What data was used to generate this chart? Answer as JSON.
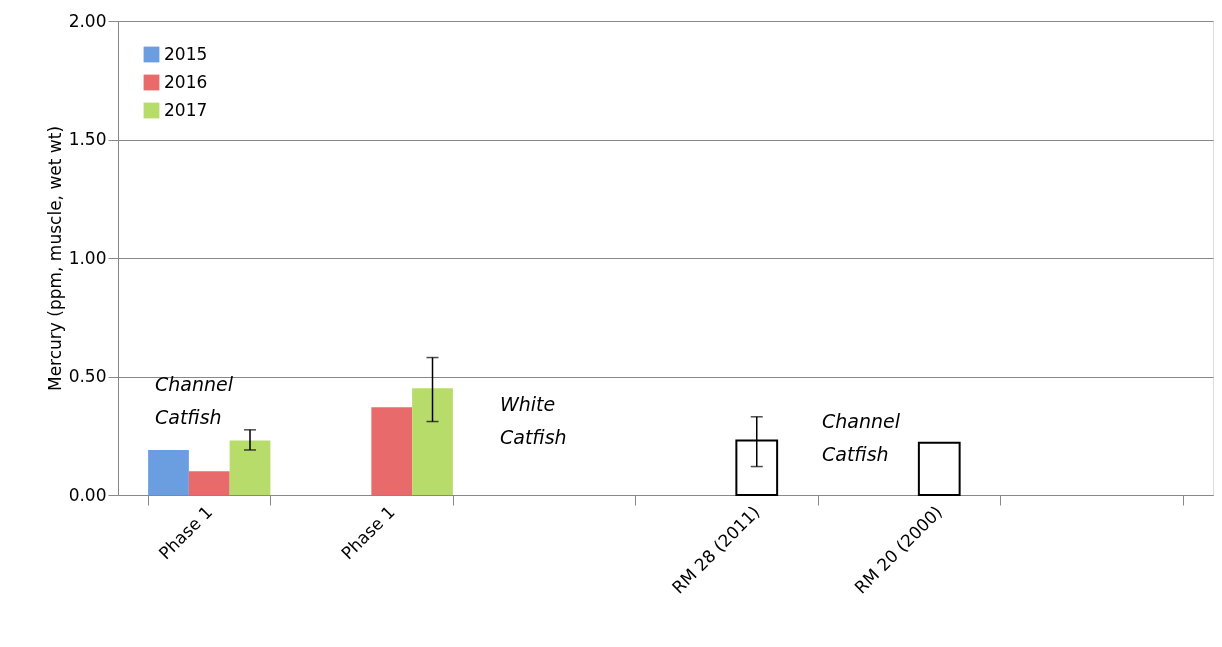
{
  "chart_data": {
    "type": "bar",
    "ylabel": "Mercury (ppm, muscle, wet wt)",
    "categories": [
      "Phase 1",
      "Phase 1",
      null,
      "RM 28 (2011)",
      "RM 20 (2000)",
      null
    ],
    "series": [
      {
        "name": "2015",
        "color": "#6a9ee0",
        "values": [
          0.19,
          null,
          null,
          null,
          null,
          null
        ]
      },
      {
        "name": "2016",
        "color": "#e86a6a",
        "values": [
          0.1,
          0.37,
          null,
          null,
          null,
          null
        ]
      },
      {
        "name": "2017",
        "color": "#b8dc6a",
        "values": [
          0.23,
          0.45,
          null,
          null,
          null,
          null
        ],
        "errors": [
          [
            0.19,
            0.275
          ],
          [
            0.31,
            0.58
          ],
          null,
          null,
          null,
          null
        ]
      },
      {
        "color": "#ffffff",
        "values": [
          null,
          null,
          null,
          0.23,
          0.22,
          null
        ],
        "errors": [
          null,
          null,
          null,
          [
            0.12,
            0.33
          ],
          null,
          null
        ]
      }
    ],
    "ylim": [
      0,
      2
    ],
    "yticks": [
      {
        "value": 0,
        "label": "0.00"
      },
      {
        "value": 0.5,
        "label": "0.50"
      },
      {
        "value": 1,
        "label": "1.00"
      },
      {
        "value": 1.5,
        "label": "1.50"
      },
      {
        "value": 2,
        "label": "2.00"
      }
    ],
    "grid": "y",
    "legend": "top left",
    "annotations": [
      "Channel Catfish",
      "White Catfish",
      "Channel Catfish"
    ]
  }
}
